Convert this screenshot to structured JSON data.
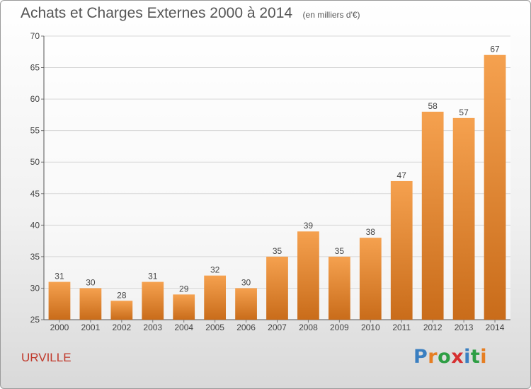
{
  "title": "Achats et Charges Externes 2000 à 2014",
  "subtitle": "(en milliers d'€)",
  "commune": "URVILLE",
  "logo": {
    "text": "Proxiti",
    "letters": [
      "P",
      "r",
      "o",
      "x",
      "i",
      "t",
      "i"
    ],
    "colors": [
      "#3a7fc1",
      "#e67e22",
      "#2e9e44",
      "#d63031",
      "#3a7fc1",
      "#2e9e44",
      "#e67e22"
    ]
  },
  "colors": {
    "bar_light": "#f5a14f",
    "bar_dark": "#c96c1a",
    "label": "#444444",
    "grid": "#d8d8d8"
  },
  "chart_data": {
    "type": "bar",
    "title": "Achats et Charges Externes 2000 à 2014",
    "xlabel": "",
    "ylabel": "",
    "categories": [
      "2000",
      "2001",
      "2002",
      "2003",
      "2004",
      "2005",
      "2006",
      "2007",
      "2008",
      "2009",
      "2010",
      "2011",
      "2012",
      "2013",
      "2014"
    ],
    "values": [
      31,
      30,
      28,
      31,
      29,
      32,
      30,
      35,
      39,
      35,
      38,
      47,
      58,
      57,
      67
    ],
    "ylim": [
      25,
      70
    ],
    "yticks": [
      25,
      30,
      35,
      40,
      45,
      50,
      55,
      60,
      65,
      70
    ],
    "grid": true,
    "data_labels": true
  }
}
